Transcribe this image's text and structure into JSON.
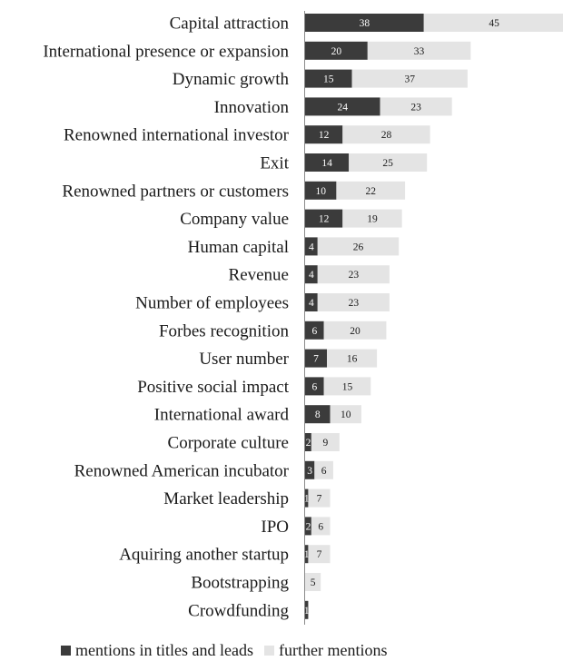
{
  "chart_data": {
    "type": "bar",
    "orientation": "horizontal",
    "stacked": true,
    "categories": [
      "Capital attraction",
      "International presence or expansion",
      "Dynamic growth",
      "Innovation",
      "Renowned international investor",
      "Exit",
      "Renowned partners or customers",
      "Company value",
      "Human capital",
      "Revenue",
      "Number of employees",
      "Forbes recognition",
      "User number",
      "Positive social impact",
      "International award",
      "Corporate culture",
      "Renowned American incubator",
      "Market leadership",
      "IPO",
      "Aquiring another startup",
      "Bootstrapping",
      "Crowdfunding"
    ],
    "series": [
      {
        "name": "mentions in titles and leads",
        "color": "#3b3b3b",
        "values": [
          38,
          20,
          15,
          24,
          12,
          14,
          10,
          12,
          4,
          4,
          4,
          6,
          7,
          6,
          8,
          2,
          3,
          1,
          2,
          1,
          0,
          1
        ]
      },
      {
        "name": "further mentions",
        "color": "#e4e4e4",
        "values": [
          45,
          33,
          37,
          23,
          28,
          25,
          22,
          19,
          26,
          23,
          23,
          20,
          16,
          15,
          10,
          9,
          6,
          7,
          6,
          7,
          5,
          0
        ]
      }
    ],
    "legend_position": "bottom",
    "grid": false
  },
  "legend": {
    "item1": "mentions in titles and leads",
    "item2": "further mentions"
  }
}
